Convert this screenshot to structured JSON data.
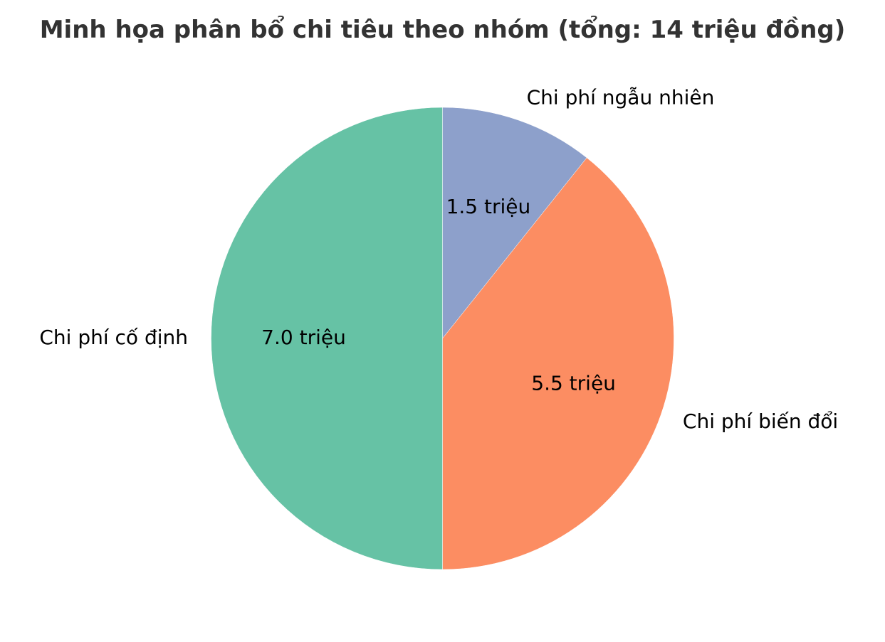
{
  "chart_data": {
    "type": "pie",
    "title": "Minh họa phân bổ chi tiêu theo nhóm (tổng: 14 triệu đồng)",
    "total": 14,
    "unit": "triệu",
    "start_angle_deg": 90,
    "direction": "clockwise",
    "legend": "none",
    "slices": [
      {
        "label": "Chi phí ngẫu nhiên",
        "value": 1.5,
        "value_label": "1.5 triệu",
        "color": "#8da0cb"
      },
      {
        "label": "Chi phí biến đổi",
        "value": 5.5,
        "value_label": "5.5 triệu",
        "color": "#fc8d62"
      },
      {
        "label": "Chi phí cố định",
        "value": 7.0,
        "value_label": "7.0 triệu",
        "color": "#66c2a5"
      }
    ]
  }
}
